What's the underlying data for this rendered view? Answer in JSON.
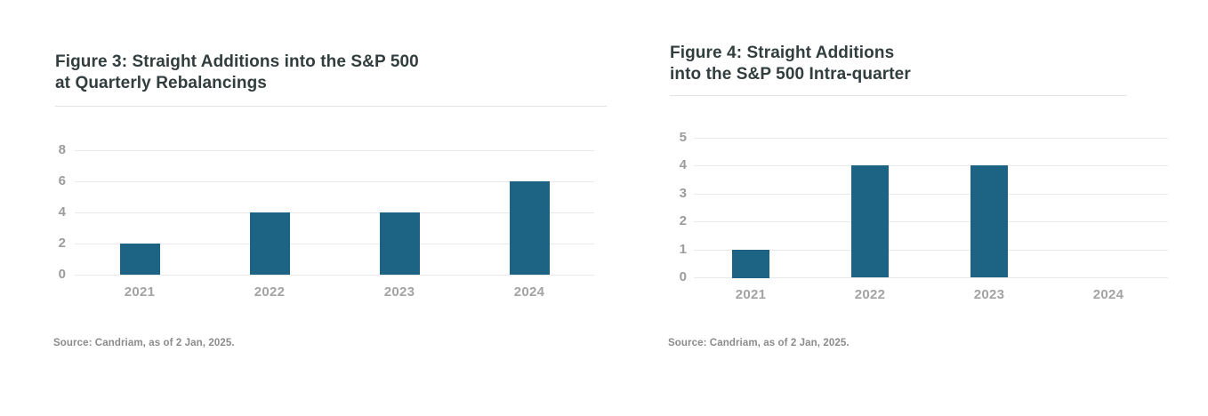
{
  "colors": {
    "bar": "#1d6384",
    "grid": "#e9e9e9",
    "title_text": "#323d3e",
    "y_tick_label": "#9c9c9c",
    "x_tick_label": "#a3a3a3",
    "source_text": "#8b8b8b",
    "background": "#ffffff"
  },
  "chart_data": [
    {
      "type": "bar",
      "title": "Figure 3: Straight Additions into the S&P 500 at Quarterly Rebalancings",
      "title_display": "Figure 3: Straight Additions into the S&P 500\nat Quarterly Rebalancings",
      "categories": [
        "2021",
        "2022",
        "2023",
        "2024"
      ],
      "values": [
        2,
        4,
        4,
        6
      ],
      "xlabel": "",
      "ylabel": "",
      "ylim": [
        0,
        8
      ],
      "yticks": [
        0,
        2,
        4,
        6,
        8
      ],
      "grid": true,
      "legend": "none",
      "bar_color": "#1d6384",
      "source": "Source: Candriam, as of 2 Jan, 2025."
    },
    {
      "type": "bar",
      "title": "Figure 4: Straight Additions into the S&P 500 Intra-quarter",
      "title_display": "Figure 4: Straight Additions\ninto the S&P 500 Intra-quarter",
      "categories": [
        "2021",
        "2022",
        "2023",
        "2024"
      ],
      "values": [
        1,
        4,
        4,
        0
      ],
      "xlabel": "",
      "ylabel": "",
      "ylim": [
        0,
        5
      ],
      "yticks": [
        0,
        1,
        2,
        3,
        4,
        5
      ],
      "grid": true,
      "legend": "none",
      "bar_color": "#1d6384",
      "source": "Source: Candriam, as of 2 Jan, 2025."
    }
  ]
}
